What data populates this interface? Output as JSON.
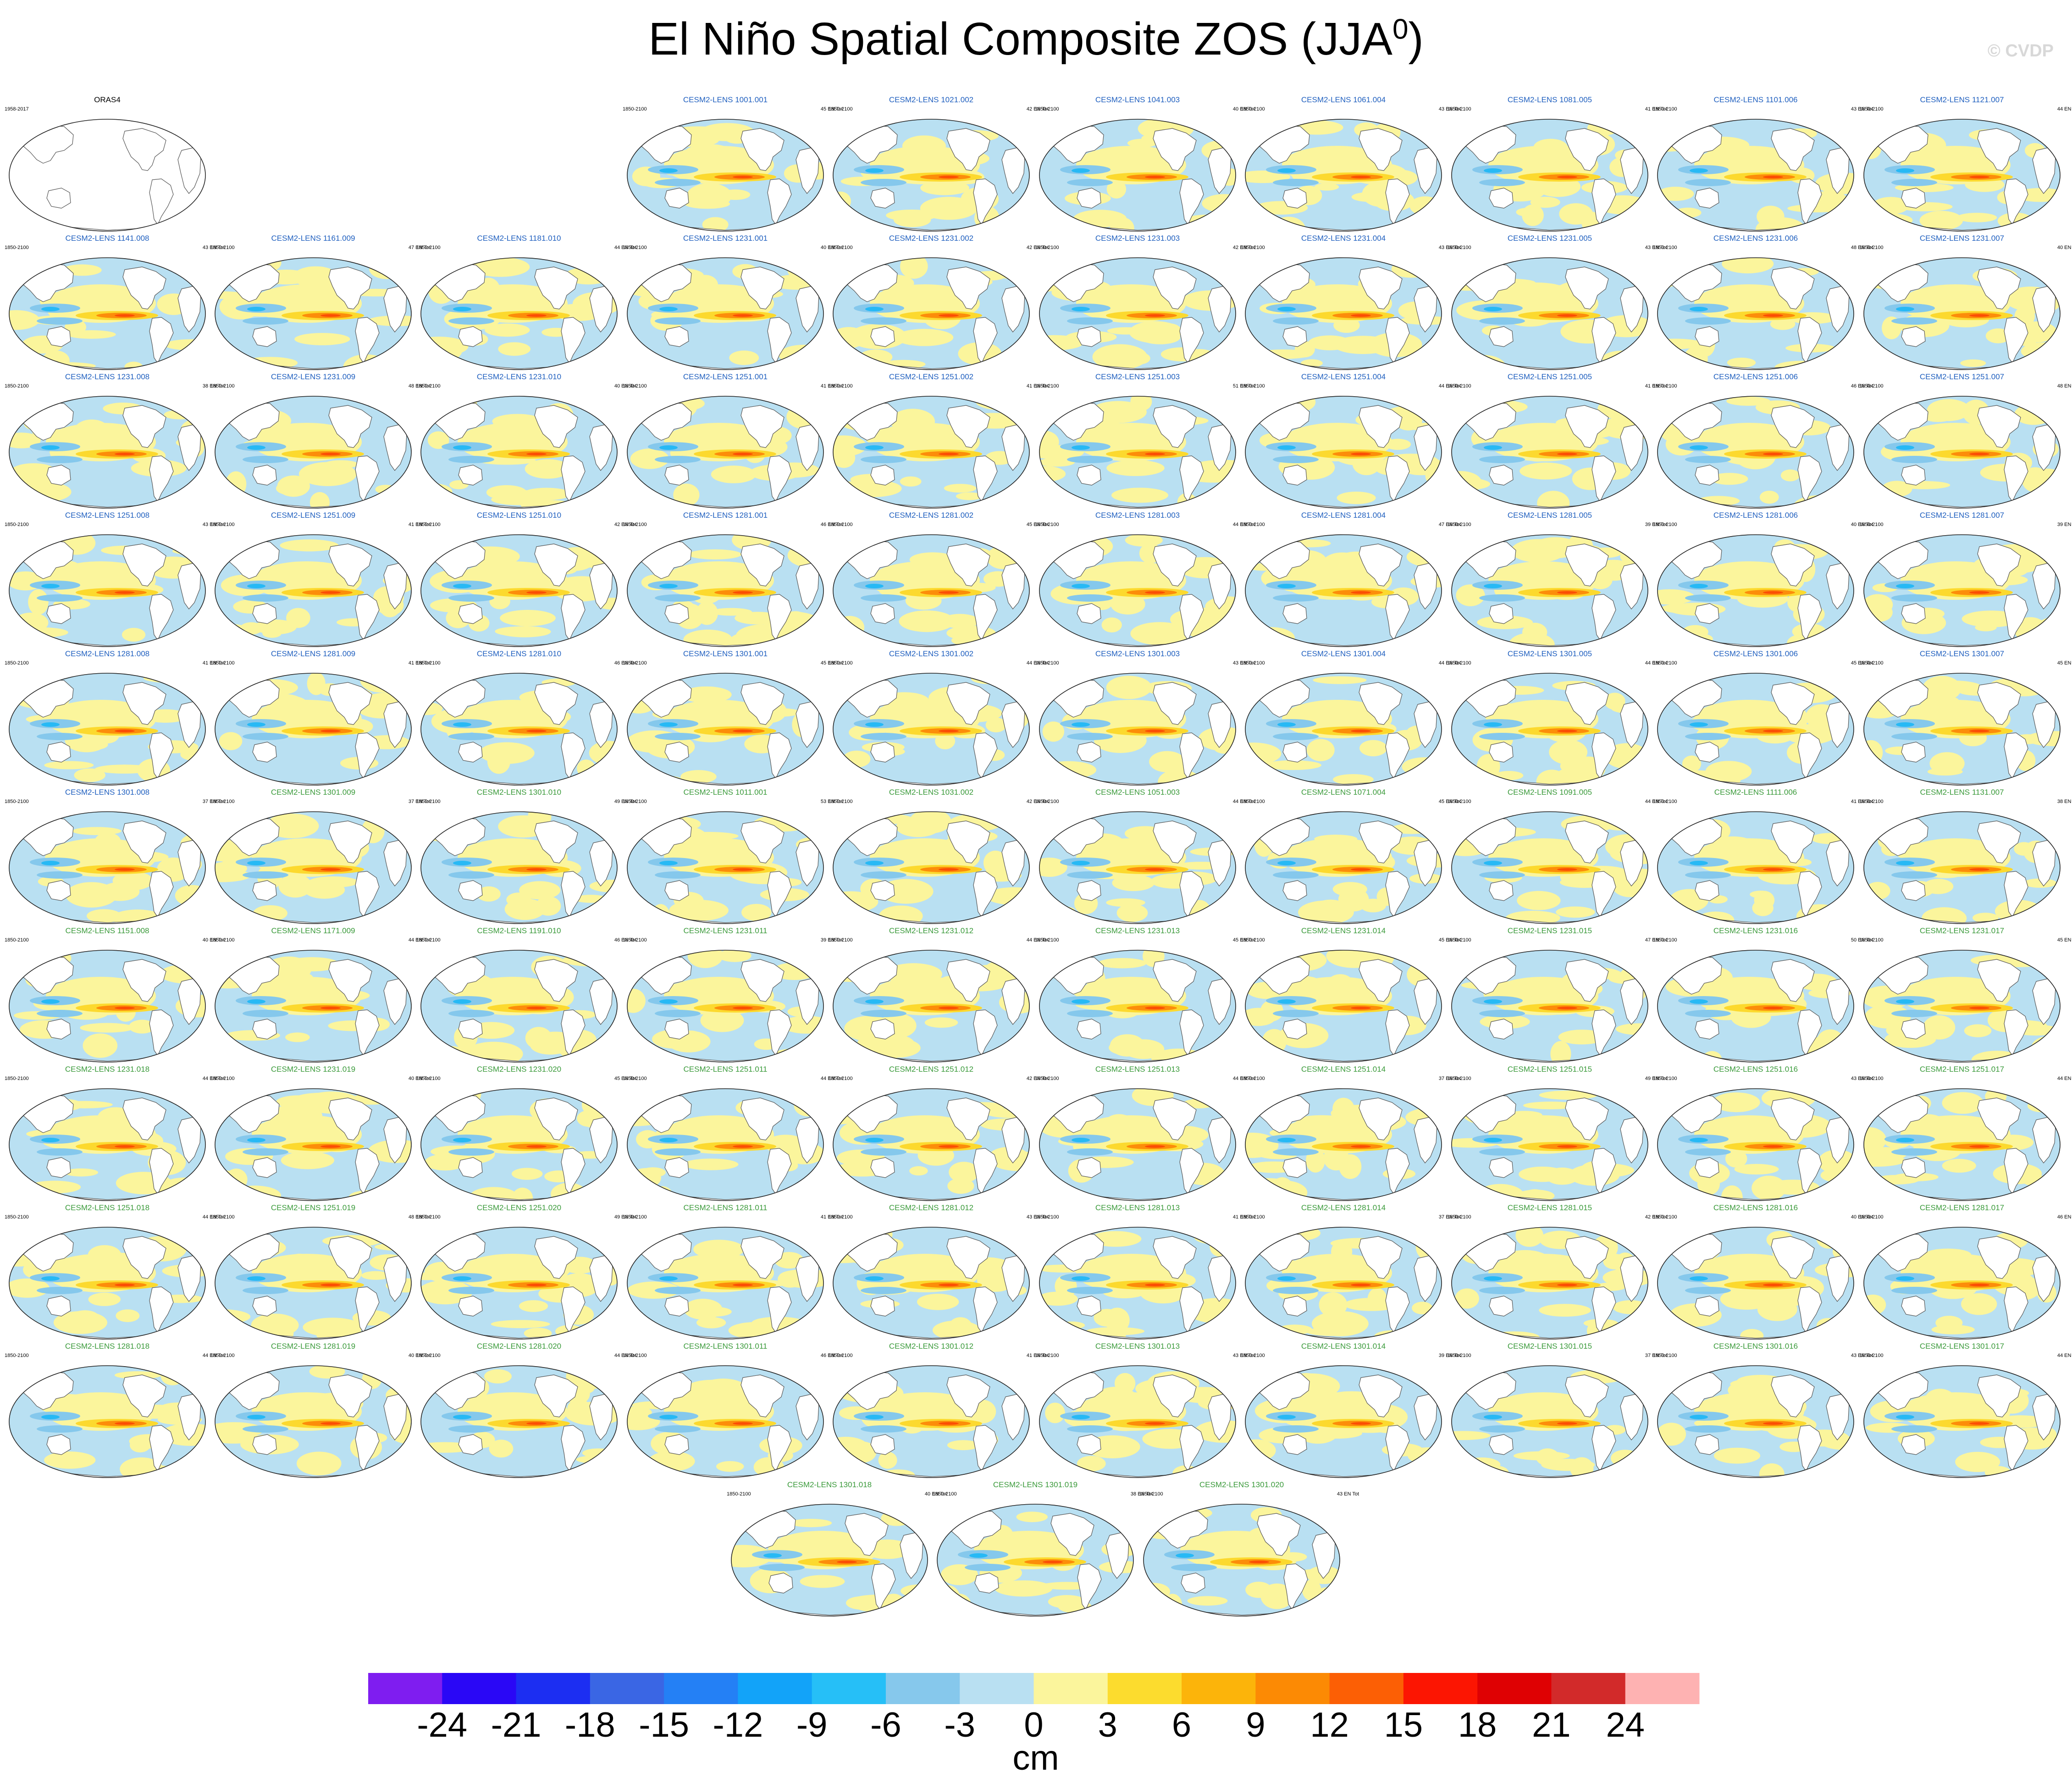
{
  "title": {
    "main": "El Niño Spatial Composite ZOS (JJA",
    "sup": "0",
    "close": ")"
  },
  "watermark": "© CVDP",
  "reference_panel": {
    "title": "ORAS4",
    "period": "1958-2017"
  },
  "colors": {
    "neg_shade": "#b9e0f2",
    "pos_shade": "#fbf59c",
    "neg_mid": "#85c8ec",
    "neg_strong": "#27b9f5",
    "pos_mid": "#fcd92e",
    "pos_strong": "#fc8d0a",
    "pos_core": "#fb4e04",
    "land": "#ffffff",
    "coast": "#555555",
    "title_blue": "#1f5fbf",
    "title_green": "#3a9a3a"
  },
  "map_data": {
    "type": "map-panels",
    "variable": "ZOS",
    "season": "JJA",
    "panels": [
      {
        "title": "CESM2-LENS 1001.001",
        "period": "1850-2100",
        "count": "45 EN Tot"
      },
      {
        "title": "CESM2-LENS 1021.002",
        "period": "1850-2100",
        "count": "42 EN Tot"
      },
      {
        "title": "CESM2-LENS 1041.003",
        "period": "1850-2100",
        "count": "40 EN Tot"
      },
      {
        "title": "CESM2-LENS 1061.004",
        "period": "1850-2100",
        "count": "43 EN Tot"
      },
      {
        "title": "CESM2-LENS 1081.005",
        "period": "1850-2100",
        "count": "41 EN Tot"
      },
      {
        "title": "CESM2-LENS 1101.006",
        "period": "1850-2100",
        "count": "43 EN Tot"
      },
      {
        "title": "CESM2-LENS 1121.007",
        "period": "1850-2100",
        "count": "44 EN Tot"
      },
      {
        "title": "CESM2-LENS 1141.008",
        "period": "1850-2100",
        "count": "43 EN Tot"
      },
      {
        "title": "CESM2-LENS 1161.009",
        "period": "1850-2100",
        "count": "47 EN Tot"
      },
      {
        "title": "CESM2-LENS 1181.010",
        "period": "1850-2100",
        "count": "44 EN Tot"
      },
      {
        "title": "CESM2-LENS 1231.001",
        "period": "1850-2100",
        "count": "40 EN Tot"
      },
      {
        "title": "CESM2-LENS 1231.002",
        "period": "1850-2100",
        "count": "42 EN Tot"
      },
      {
        "title": "CESM2-LENS 1231.003",
        "period": "1850-2100",
        "count": "42 EN Tot"
      },
      {
        "title": "CESM2-LENS 1231.004",
        "period": "1850-2100",
        "count": "43 EN Tot"
      },
      {
        "title": "CESM2-LENS 1231.005",
        "period": "1850-2100",
        "count": "43 EN Tot"
      },
      {
        "title": "CESM2-LENS 1231.006",
        "period": "1850-2100",
        "count": "48 EN Tot"
      },
      {
        "title": "CESM2-LENS 1231.007",
        "period": "1850-2100",
        "count": "40 EN Tot"
      },
      {
        "title": "CESM2-LENS 1231.008",
        "period": "1850-2100",
        "count": "38 EN Tot"
      },
      {
        "title": "CESM2-LENS 1231.009",
        "period": "1850-2100",
        "count": "48 EN Tot"
      },
      {
        "title": "CESM2-LENS 1231.010",
        "period": "1850-2100",
        "count": "40 EN Tot"
      },
      {
        "title": "CESM2-LENS 1251.001",
        "period": "1850-2100",
        "count": "41 EN Tot"
      },
      {
        "title": "CESM2-LENS 1251.002",
        "period": "1850-2100",
        "count": "41 EN Tot"
      },
      {
        "title": "CESM2-LENS 1251.003",
        "period": "1850-2100",
        "count": "51 EN Tot"
      },
      {
        "title": "CESM2-LENS 1251.004",
        "period": "1850-2100",
        "count": "44 EN Tot"
      },
      {
        "title": "CESM2-LENS 1251.005",
        "period": "1850-2100",
        "count": "41 EN Tot"
      },
      {
        "title": "CESM2-LENS 1251.006",
        "period": "1850-2100",
        "count": "46 EN Tot"
      },
      {
        "title": "CESM2-LENS 1251.007",
        "period": "1850-2100",
        "count": "48 EN Tot"
      },
      {
        "title": "CESM2-LENS 1251.008",
        "period": "1850-2100",
        "count": "43 EN Tot"
      },
      {
        "title": "CESM2-LENS 1251.009",
        "period": "1850-2100",
        "count": "41 EN Tot"
      },
      {
        "title": "CESM2-LENS 1251.010",
        "period": "1850-2100",
        "count": "42 EN Tot"
      },
      {
        "title": "CESM2-LENS 1281.001",
        "period": "1850-2100",
        "count": "46 EN Tot"
      },
      {
        "title": "CESM2-LENS 1281.002",
        "period": "1850-2100",
        "count": "45 EN Tot"
      },
      {
        "title": "CESM2-LENS 1281.003",
        "period": "1850-2100",
        "count": "44 EN Tot"
      },
      {
        "title": "CESM2-LENS 1281.004",
        "period": "1850-2100",
        "count": "47 EN Tot"
      },
      {
        "title": "CESM2-LENS 1281.005",
        "period": "1850-2100",
        "count": "39 EN Tot"
      },
      {
        "title": "CESM2-LENS 1281.006",
        "period": "1850-2100",
        "count": "40 EN Tot"
      },
      {
        "title": "CESM2-LENS 1281.007",
        "period": "1850-2100",
        "count": "39 EN Tot"
      },
      {
        "title": "CESM2-LENS 1281.008",
        "period": "1850-2100",
        "count": "41 EN Tot"
      },
      {
        "title": "CESM2-LENS 1281.009",
        "period": "1850-2100",
        "count": "41 EN Tot"
      },
      {
        "title": "CESM2-LENS 1281.010",
        "period": "1850-2100",
        "count": "46 EN Tot"
      },
      {
        "title": "CESM2-LENS 1301.001",
        "period": "1850-2100",
        "count": "45 EN Tot"
      },
      {
        "title": "CESM2-LENS 1301.002",
        "period": "1850-2100",
        "count": "44 EN Tot"
      },
      {
        "title": "CESM2-LENS 1301.003",
        "period": "1850-2100",
        "count": "43 EN Tot"
      },
      {
        "title": "CESM2-LENS 1301.004",
        "period": "1850-2100",
        "count": "44 EN Tot"
      },
      {
        "title": "CESM2-LENS 1301.005",
        "period": "1850-2100",
        "count": "44 EN Tot"
      },
      {
        "title": "CESM2-LENS 1301.006",
        "period": "1850-2100",
        "count": "45 EN Tot"
      },
      {
        "title": "CESM2-LENS 1301.007",
        "period": "1850-2100",
        "count": "45 EN Tot"
      },
      {
        "title": "CESM2-LENS 1301.008",
        "period": "1850-2100",
        "count": "37 EN Tot"
      },
      {
        "title": "CESM2-LENS 1301.009",
        "period": "1850-2100",
        "count": "37 EN Tot"
      },
      {
        "title": "CESM2-LENS 1301.010",
        "period": "1850-2100",
        "count": "49 EN Tot"
      },
      {
        "title": "CESM2-LENS 1011.001",
        "period": "1850-2100",
        "count": "53 EN Tot"
      },
      {
        "title": "CESM2-LENS 1031.002",
        "period": "1850-2100",
        "count": "42 EN Tot"
      },
      {
        "title": "CESM2-LENS 1051.003",
        "period": "1850-2100",
        "count": "44 EN Tot"
      },
      {
        "title": "CESM2-LENS 1071.004",
        "period": "1850-2100",
        "count": "45 EN Tot"
      },
      {
        "title": "CESM2-LENS 1091.005",
        "period": "1850-2100",
        "count": "44 EN Tot"
      },
      {
        "title": "CESM2-LENS 1111.006",
        "period": "1850-2100",
        "count": "41 EN Tot"
      },
      {
        "title": "CESM2-LENS 1131.007",
        "period": "1850-2100",
        "count": "38 EN Tot"
      },
      {
        "title": "CESM2-LENS 1151.008",
        "period": "1850-2100",
        "count": "40 EN Tot"
      },
      {
        "title": "CESM2-LENS 1171.009",
        "period": "1850-2100",
        "count": "44 EN Tot"
      },
      {
        "title": "CESM2-LENS 1191.010",
        "period": "1850-2100",
        "count": "46 EN Tot"
      },
      {
        "title": "CESM2-LENS 1231.011",
        "period": "1850-2100",
        "count": "39 EN Tot"
      },
      {
        "title": "CESM2-LENS 1231.012",
        "period": "1850-2100",
        "count": "44 EN Tot"
      },
      {
        "title": "CESM2-LENS 1231.013",
        "period": "1850-2100",
        "count": "45 EN Tot"
      },
      {
        "title": "CESM2-LENS 1231.014",
        "period": "1850-2100",
        "count": "45 EN Tot"
      },
      {
        "title": "CESM2-LENS 1231.015",
        "period": "1850-2100",
        "count": "47 EN Tot"
      },
      {
        "title": "CESM2-LENS 1231.016",
        "period": "1850-2100",
        "count": "50 EN Tot"
      },
      {
        "title": "CESM2-LENS 1231.017",
        "period": "1850-2100",
        "count": "45 EN Tot"
      },
      {
        "title": "CESM2-LENS 1231.018",
        "period": "1850-2100",
        "count": "44 EN Tot"
      },
      {
        "title": "CESM2-LENS 1231.019",
        "period": "1850-2100",
        "count": "40 EN Tot"
      },
      {
        "title": "CESM2-LENS 1231.020",
        "period": "1850-2100",
        "count": "45 EN Tot"
      },
      {
        "title": "CESM2-LENS 1251.011",
        "period": "1850-2100",
        "count": "44 EN Tot"
      },
      {
        "title": "CESM2-LENS 1251.012",
        "period": "1850-2100",
        "count": "42 EN Tot"
      },
      {
        "title": "CESM2-LENS 1251.013",
        "period": "1850-2100",
        "count": "44 EN Tot"
      },
      {
        "title": "CESM2-LENS 1251.014",
        "period": "1850-2100",
        "count": "37 EN Tot"
      },
      {
        "title": "CESM2-LENS 1251.015",
        "period": "1850-2100",
        "count": "49 EN Tot"
      },
      {
        "title": "CESM2-LENS 1251.016",
        "period": "1850-2100",
        "count": "43 EN Tot"
      },
      {
        "title": "CESM2-LENS 1251.017",
        "period": "1850-2100",
        "count": "44 EN Tot"
      },
      {
        "title": "CESM2-LENS 1251.018",
        "period": "1850-2100",
        "count": "44 EN Tot"
      },
      {
        "title": "CESM2-LENS 1251.019",
        "period": "1850-2100",
        "count": "48 EN Tot"
      },
      {
        "title": "CESM2-LENS 1251.020",
        "period": "1850-2100",
        "count": "49 EN Tot"
      },
      {
        "title": "CESM2-LENS 1281.011",
        "period": "1850-2100",
        "count": "41 EN Tot"
      },
      {
        "title": "CESM2-LENS 1281.012",
        "period": "1850-2100",
        "count": "43 EN Tot"
      },
      {
        "title": "CESM2-LENS 1281.013",
        "period": "1850-2100",
        "count": "41 EN Tot"
      },
      {
        "title": "CESM2-LENS 1281.014",
        "period": "1850-2100",
        "count": "37 EN Tot"
      },
      {
        "title": "CESM2-LENS 1281.015",
        "period": "1850-2100",
        "count": "42 EN Tot"
      },
      {
        "title": "CESM2-LENS 1281.016",
        "period": "1850-2100",
        "count": "40 EN Tot"
      },
      {
        "title": "CESM2-LENS 1281.017",
        "period": "1850-2100",
        "count": "46 EN Tot"
      },
      {
        "title": "CESM2-LENS 1281.018",
        "period": "1850-2100",
        "count": "44 EN Tot"
      },
      {
        "title": "CESM2-LENS 1281.019",
        "period": "1850-2100",
        "count": "40 EN Tot"
      },
      {
        "title": "CESM2-LENS 1281.020",
        "period": "1850-2100",
        "count": "44 EN Tot"
      },
      {
        "title": "CESM2-LENS 1301.011",
        "period": "1850-2100",
        "count": "46 EN Tot"
      },
      {
        "title": "CESM2-LENS 1301.012",
        "period": "1850-2100",
        "count": "41 EN Tot"
      },
      {
        "title": "CESM2-LENS 1301.013",
        "period": "1850-2100",
        "count": "43 EN Tot"
      },
      {
        "title": "CESM2-LENS 1301.014",
        "period": "1850-2100",
        "count": "39 EN Tot"
      },
      {
        "title": "CESM2-LENS 1301.015",
        "period": "1850-2100",
        "count": "37 EN Tot"
      },
      {
        "title": "CESM2-LENS 1301.016",
        "period": "1850-2100",
        "count": "43 EN Tot"
      },
      {
        "title": "CESM2-LENS 1301.017",
        "period": "1850-2100",
        "count": "44 EN Tot"
      },
      {
        "title": "CESM2-LENS 1301.018",
        "period": "1850-2100",
        "count": "40 EN Tot"
      },
      {
        "title": "CESM2-LENS 1301.019",
        "period": "1850-2100",
        "count": "38 EN Tot"
      },
      {
        "title": "CESM2-LENS 1301.020",
        "period": "1850-2100",
        "count": "43 EN Tot"
      }
    ]
  },
  "colorbar": {
    "unit": "cm",
    "ticks": [
      "-24",
      "-21",
      "-18",
      "-15",
      "-12",
      "-9",
      "-6",
      "-3",
      "0",
      "3",
      "6",
      "9",
      "12",
      "15",
      "18",
      "21",
      "24"
    ],
    "colors": [
      "#7f1df0",
      "#2a07f6",
      "#1c2ef2",
      "#3a66e4",
      "#2480f5",
      "#12a3f9",
      "#26bff7",
      "#86c8ec",
      "#b9e0f2",
      "#fbf59c",
      "#fcdc2e",
      "#fcb40a",
      "#fc8a04",
      "#fc5f05",
      "#fc1502",
      "#df0103",
      "#d22a2a",
      "#feb2b2"
    ]
  }
}
